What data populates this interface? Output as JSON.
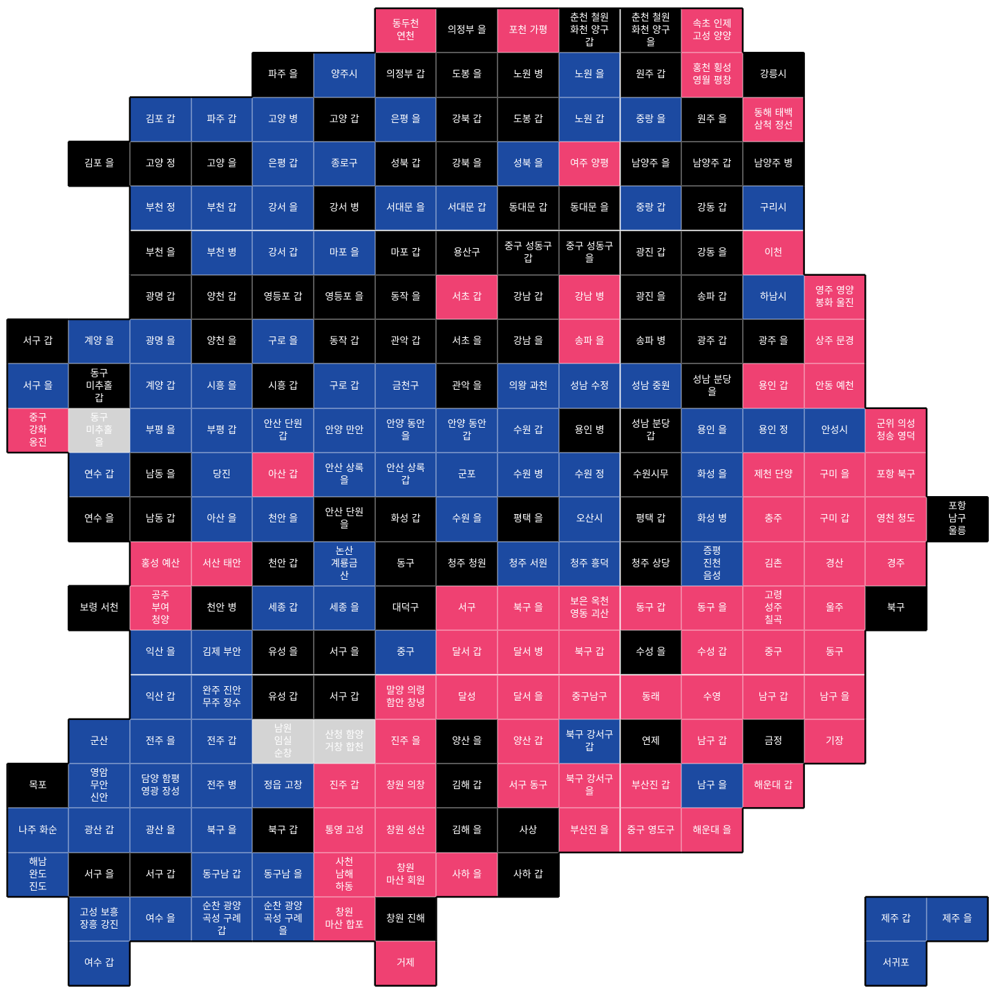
{
  "colors": {
    "b": "#1c4aa1",
    "r": "#ef4172",
    "k": "#000000",
    "g": "#d4d4d4"
  },
  "rows": [
    [
      [
        6,
        "동두천\n연천",
        "r"
      ],
      [
        7,
        "의정부 을",
        "k"
      ],
      [
        8,
        "포천 가평",
        "r"
      ],
      [
        9,
        "춘천 철원\n화천 양구\n갑",
        "k"
      ],
      [
        10,
        "춘천 철원\n화천 양구\n을",
        "k"
      ],
      [
        11,
        "속초 인제\n고성 양양",
        "r"
      ]
    ],
    [
      [
        4,
        "파주 을",
        "k"
      ],
      [
        5,
        "양주시",
        "b"
      ],
      [
        6,
        "의정부 갑",
        "k"
      ],
      [
        7,
        "도봉 을",
        "k"
      ],
      [
        8,
        "노원 병",
        "k"
      ],
      [
        9,
        "노원 을",
        "b"
      ],
      [
        10,
        "원주 갑",
        "k"
      ],
      [
        11,
        "홍천 횡성\n영월 평창",
        "r"
      ],
      [
        12,
        "강릉시",
        "k"
      ]
    ],
    [
      [
        2,
        "김포 갑",
        "b"
      ],
      [
        3,
        "파주 갑",
        "b"
      ],
      [
        4,
        "고양 병",
        "b"
      ],
      [
        5,
        "고양 갑",
        "k"
      ],
      [
        6,
        "은평 을",
        "b"
      ],
      [
        7,
        "강북 갑",
        "k"
      ],
      [
        8,
        "도봉 갑",
        "k"
      ],
      [
        9,
        "노원 갑",
        "b"
      ],
      [
        10,
        "중랑 을",
        "b"
      ],
      [
        11,
        "원주 을",
        "k"
      ],
      [
        12,
        "동해 태백\n삼척 정선",
        "r"
      ]
    ],
    [
      [
        1,
        "김포 을",
        "k"
      ],
      [
        2,
        "고양 정",
        "k"
      ],
      [
        3,
        "고양 을",
        "k"
      ],
      [
        4,
        "은평 갑",
        "b"
      ],
      [
        5,
        "종로구",
        "b"
      ],
      [
        6,
        "성북 갑",
        "k"
      ],
      [
        7,
        "강북 을",
        "k"
      ],
      [
        8,
        "성북 을",
        "b"
      ],
      [
        9,
        "여주 양평",
        "r"
      ],
      [
        10,
        "남양주 을",
        "k"
      ],
      [
        11,
        "남양주 갑",
        "k"
      ],
      [
        12,
        "남양주 병",
        "k"
      ]
    ],
    [
      [
        2,
        "부천 정",
        "b"
      ],
      [
        3,
        "부천 갑",
        "b"
      ],
      [
        4,
        "강서 을",
        "b"
      ],
      [
        5,
        "강서 병",
        "k"
      ],
      [
        6,
        "서대문 을",
        "b"
      ],
      [
        7,
        "서대문 갑",
        "b"
      ],
      [
        8,
        "동대문 갑",
        "k"
      ],
      [
        9,
        "동대문 을",
        "k"
      ],
      [
        10,
        "중랑 갑",
        "b"
      ],
      [
        11,
        "강동 갑",
        "k"
      ],
      [
        12,
        "구리시",
        "b"
      ]
    ],
    [
      [
        2,
        "부천 을",
        "k"
      ],
      [
        3,
        "부천 병",
        "b"
      ],
      [
        4,
        "강서 갑",
        "b"
      ],
      [
        5,
        "마포 을",
        "b"
      ],
      [
        6,
        "마포 갑",
        "k"
      ],
      [
        7,
        "용산구",
        "k"
      ],
      [
        8,
        "중구 성동구\n갑",
        "k"
      ],
      [
        9,
        "중구 성동구\n을",
        "k"
      ],
      [
        10,
        "광진 갑",
        "k"
      ],
      [
        11,
        "강동 을",
        "k"
      ],
      [
        12,
        "이천",
        "r"
      ]
    ],
    [
      [
        2,
        "광명 갑",
        "k"
      ],
      [
        3,
        "양천 갑",
        "k"
      ],
      [
        4,
        "영등포 갑",
        "k"
      ],
      [
        5,
        "영등포 을",
        "k"
      ],
      [
        6,
        "동작 을",
        "k"
      ],
      [
        7,
        "서초 갑",
        "r"
      ],
      [
        8,
        "강남 갑",
        "k"
      ],
      [
        9,
        "강남 병",
        "r"
      ],
      [
        10,
        "광진 을",
        "k"
      ],
      [
        11,
        "송파 갑",
        "k"
      ],
      [
        12,
        "하남시",
        "b"
      ],
      [
        13,
        "영주 영양\n봉화 울진",
        "r"
      ]
    ],
    [
      [
        0,
        "서구 갑",
        "k"
      ],
      [
        1,
        "계양 을",
        "b"
      ],
      [
        2,
        "광명 을",
        "b"
      ],
      [
        3,
        "양천 을",
        "k"
      ],
      [
        4,
        "구로 을",
        "b"
      ],
      [
        5,
        "동작 갑",
        "k"
      ],
      [
        6,
        "관악 갑",
        "k"
      ],
      [
        7,
        "서초 을",
        "k"
      ],
      [
        8,
        "강남 을",
        "k"
      ],
      [
        9,
        "송파 을",
        "r"
      ],
      [
        10,
        "송파 병",
        "k"
      ],
      [
        11,
        "광주 갑",
        "k"
      ],
      [
        12,
        "광주 을",
        "k"
      ],
      [
        13,
        "상주 문경",
        "r"
      ]
    ],
    [
      [
        0,
        "서구 을",
        "b"
      ],
      [
        1,
        "동구\n미추홀\n갑",
        "k"
      ],
      [
        2,
        "계양 갑",
        "b"
      ],
      [
        3,
        "시흥 을",
        "b"
      ],
      [
        4,
        "시흥 갑",
        "k"
      ],
      [
        5,
        "구로 갑",
        "b"
      ],
      [
        6,
        "금천구",
        "b"
      ],
      [
        7,
        "관악 을",
        "k"
      ],
      [
        8,
        "의왕 과천",
        "b"
      ],
      [
        9,
        "성남 수정",
        "b"
      ],
      [
        10,
        "성남 중원",
        "b"
      ],
      [
        11,
        "성남 분당\n을",
        "k"
      ],
      [
        12,
        "용인 갑",
        "r"
      ],
      [
        13,
        "안동 예천",
        "r"
      ]
    ],
    [
      [
        0,
        "중구\n강화\n옹진",
        "r"
      ],
      [
        1,
        "동구\n미추홀\n을",
        "g"
      ],
      [
        2,
        "부평 을",
        "b"
      ],
      [
        3,
        "부평 갑",
        "b"
      ],
      [
        4,
        "안산 단원\n갑",
        "b"
      ],
      [
        5,
        "안양 만안",
        "b"
      ],
      [
        6,
        "안양 동안\n을",
        "b"
      ],
      [
        7,
        "안양 동안\n갑",
        "b"
      ],
      [
        8,
        "수원 갑",
        "b"
      ],
      [
        9,
        "용인 병",
        "k"
      ],
      [
        10,
        "성남 분당\n갑",
        "k"
      ],
      [
        11,
        "용인 을",
        "b"
      ],
      [
        12,
        "용인 정",
        "b"
      ],
      [
        13,
        "안성시",
        "b"
      ],
      [
        14,
        "군위 의성\n청송 영덕",
        "r"
      ]
    ],
    [
      [
        1,
        "연수 갑",
        "b"
      ],
      [
        2,
        "남동 을",
        "k"
      ],
      [
        3,
        "당진",
        "b"
      ],
      [
        4,
        "아산 갑",
        "r"
      ],
      [
        5,
        "안산 상록\n을",
        "b"
      ],
      [
        6,
        "안산 상록\n갑",
        "b"
      ],
      [
        7,
        "군포",
        "b"
      ],
      [
        8,
        "수원 병",
        "b"
      ],
      [
        9,
        "수원 정",
        "b"
      ],
      [
        10,
        "수원시무",
        "k"
      ],
      [
        11,
        "화성 을",
        "b"
      ],
      [
        12,
        "제천 단양",
        "r"
      ],
      [
        13,
        "구미 을",
        "r"
      ],
      [
        14,
        "포항 북구",
        "r"
      ]
    ],
    [
      [
        1,
        "연수 을",
        "k"
      ],
      [
        2,
        "남동 갑",
        "k"
      ],
      [
        3,
        "아산 을",
        "b"
      ],
      [
        4,
        "천안 을",
        "b"
      ],
      [
        5,
        "안산 단원\n을",
        "k"
      ],
      [
        6,
        "화성 갑",
        "k"
      ],
      [
        7,
        "수원 을",
        "b"
      ],
      [
        8,
        "평택 을",
        "k"
      ],
      [
        9,
        "오산시",
        "b"
      ],
      [
        10,
        "평택 갑",
        "k"
      ],
      [
        11,
        "화성 병",
        "b"
      ],
      [
        12,
        "충주",
        "r"
      ],
      [
        13,
        "구미 갑",
        "r"
      ],
      [
        14,
        "영천 청도",
        "r"
      ],
      [
        15,
        "포항\n남구\n울릉",
        "k"
      ]
    ],
    [
      [
        2,
        "홍성 예산",
        "r"
      ],
      [
        3,
        "서산 태안",
        "r"
      ],
      [
        4,
        "천안 갑",
        "k"
      ],
      [
        5,
        "논산\n계룡금\n산",
        "b"
      ],
      [
        6,
        "동구",
        "k"
      ],
      [
        7,
        "청주 청원",
        "k"
      ],
      [
        8,
        "청주 서원",
        "b"
      ],
      [
        9,
        "청주 흥덕",
        "b"
      ],
      [
        10,
        "청주 상당",
        "k"
      ],
      [
        11,
        "증평\n진천\n음성",
        "b"
      ],
      [
        12,
        "김촌",
        "r"
      ],
      [
        13,
        "경산",
        "r"
      ],
      [
        14,
        "경주",
        "r"
      ]
    ],
    [
      [
        1,
        "보령 서천",
        "k"
      ],
      [
        2,
        "공주\n부여\n청양",
        "r"
      ],
      [
        3,
        "천안 병",
        "k"
      ],
      [
        4,
        "세종 갑",
        "b"
      ],
      [
        5,
        "세종 을",
        "b"
      ],
      [
        6,
        "대덕구",
        "k"
      ],
      [
        7,
        "서구",
        "r"
      ],
      [
        8,
        "북구 을",
        "r"
      ],
      [
        9,
        "보은 옥천\n영동 괴산",
        "r"
      ],
      [
        10,
        "동구 갑",
        "r"
      ],
      [
        11,
        "동구 을",
        "r"
      ],
      [
        12,
        "고령\n성주\n칠곡",
        "r"
      ],
      [
        13,
        "울주",
        "r"
      ],
      [
        14,
        "북구",
        "k"
      ]
    ],
    [
      [
        2,
        "익산 을",
        "b"
      ],
      [
        3,
        "김제 부안",
        "b"
      ],
      [
        4,
        "유성 을",
        "k"
      ],
      [
        5,
        "서구 을",
        "k"
      ],
      [
        6,
        "중구",
        "b"
      ],
      [
        7,
        "달서 갑",
        "r"
      ],
      [
        8,
        "달서 병",
        "r"
      ],
      [
        9,
        "북구 갑",
        "r"
      ],
      [
        10,
        "수성 을",
        "k"
      ],
      [
        11,
        "수성 갑",
        "r"
      ],
      [
        12,
        "중구",
        "r"
      ],
      [
        13,
        "동구",
        "r"
      ]
    ],
    [
      [
        2,
        "익산 갑",
        "b"
      ],
      [
        3,
        "완주 진안\n무주 장수",
        "b"
      ],
      [
        4,
        "유성 갑",
        "k"
      ],
      [
        5,
        "서구 갑",
        "k"
      ],
      [
        6,
        "말양 의령\n함안 창녕",
        "r"
      ],
      [
        7,
        "달성",
        "r"
      ],
      [
        8,
        "달서 을",
        "r"
      ],
      [
        9,
        "중구남구",
        "r"
      ],
      [
        10,
        "동래",
        "r"
      ],
      [
        11,
        "수영",
        "r"
      ],
      [
        12,
        "남구 갑",
        "r"
      ],
      [
        13,
        "남구 을",
        "r"
      ]
    ],
    [
      [
        1,
        "군산",
        "b"
      ],
      [
        2,
        "전주 을",
        "b"
      ],
      [
        3,
        "전주 갑",
        "b"
      ],
      [
        4,
        "남원\n임실\n순창",
        "g"
      ],
      [
        5,
        "산청 함양\n거창 합천",
        "g"
      ],
      [
        6,
        "진주 을",
        "r"
      ],
      [
        7,
        "양산 을",
        "k"
      ],
      [
        8,
        "양산 갑",
        "r"
      ],
      [
        9,
        "북구 강서구\n갑",
        "b"
      ],
      [
        10,
        "연제",
        "k"
      ],
      [
        11,
        "남구 갑",
        "r"
      ],
      [
        12,
        "금정",
        "k"
      ],
      [
        13,
        "기장",
        "r"
      ]
    ],
    [
      [
        0,
        "목포",
        "k"
      ],
      [
        1,
        "영암\n무안\n신안",
        "b"
      ],
      [
        2,
        "담양 함평\n영광 장성",
        "b"
      ],
      [
        3,
        "전주 병",
        "b"
      ],
      [
        4,
        "정읍 고창",
        "b"
      ],
      [
        5,
        "진주 갑",
        "r"
      ],
      [
        6,
        "창원 의창",
        "r"
      ],
      [
        7,
        "김해 갑",
        "k"
      ],
      [
        8,
        "서구 동구",
        "r"
      ],
      [
        9,
        "북구 강서구\n을",
        "r"
      ],
      [
        10,
        "부산진 갑",
        "r"
      ],
      [
        11,
        "남구 을",
        "b"
      ],
      [
        12,
        "해운대 갑",
        "r"
      ]
    ],
    [
      [
        0,
        "나주 화순",
        "b"
      ],
      [
        1,
        "광산 갑",
        "b"
      ],
      [
        2,
        "광산 을",
        "b"
      ],
      [
        3,
        "북구 을",
        "b"
      ],
      [
        4,
        "북구 갑",
        "k"
      ],
      [
        5,
        "통영 고성",
        "r"
      ],
      [
        6,
        "창원 성산",
        "r"
      ],
      [
        7,
        "김해 을",
        "k"
      ],
      [
        8,
        "사상",
        "k"
      ],
      [
        9,
        "부산진 을",
        "r"
      ],
      [
        10,
        "중구 영도구",
        "r"
      ],
      [
        11,
        "해운대 을",
        "r"
      ]
    ],
    [
      [
        0,
        "해남\n완도\n진도",
        "b"
      ],
      [
        1,
        "서구 을",
        "k"
      ],
      [
        2,
        "서구 갑",
        "k"
      ],
      [
        3,
        "동구남 갑",
        "b"
      ],
      [
        4,
        "동구남 을",
        "b"
      ],
      [
        5,
        "사천\n남해\n하동",
        "r"
      ],
      [
        6,
        "창원\n마산 회원",
        "r"
      ],
      [
        7,
        "사하 을",
        "r"
      ],
      [
        8,
        "사하 갑",
        "k"
      ]
    ],
    [
      [
        1,
        "고성 보흥\n장흥 강진",
        "b"
      ],
      [
        2,
        "여수 을",
        "b"
      ],
      [
        3,
        "순찬 광양\n곡성 구례\n갑",
        "b"
      ],
      [
        4,
        "순찬 광양\n곡성 구례\n을",
        "b"
      ],
      [
        5,
        "창원\n마산 합포",
        "r"
      ],
      [
        6,
        "창원 진해",
        "k"
      ],
      [
        14,
        "제주 갑",
        "b"
      ],
      [
        15,
        "제주 을",
        "b"
      ]
    ],
    [
      [
        1,
        "여수 갑",
        "b"
      ],
      [
        6,
        "거제",
        "r"
      ],
      [
        14,
        "서귀포",
        "b"
      ]
    ]
  ]
}
